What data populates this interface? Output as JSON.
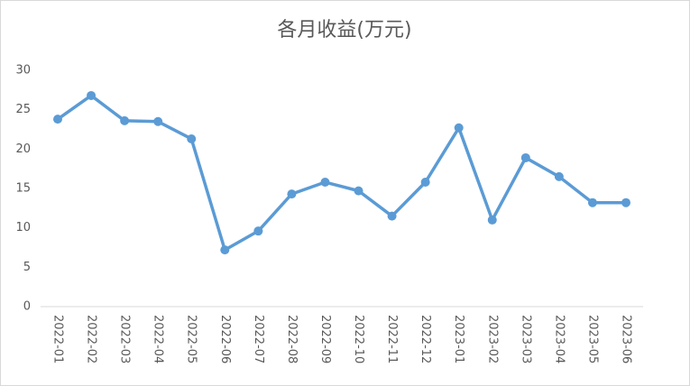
{
  "chart_data": {
    "type": "line",
    "title": "各月收益(万元)",
    "categories": [
      "2022-01",
      "2022-02",
      "2022-03",
      "2022-04",
      "2022-05",
      "2022-06",
      "2022-07",
      "2022-08",
      "2022-09",
      "2022-10",
      "2022-11",
      "2022-12",
      "2023-01",
      "2023-02",
      "2023-03",
      "2023-04",
      "2023-05",
      "2023-06"
    ],
    "values": [
      23.8,
      26.8,
      23.6,
      23.5,
      21.3,
      7.2,
      9.6,
      14.3,
      15.8,
      14.7,
      11.5,
      15.8,
      22.7,
      11.0,
      18.9,
      16.5,
      13.2,
      13.2
    ],
    "color": "#5b9bd5",
    "ylim": [
      0,
      30
    ],
    "yticks": [
      0,
      5,
      10,
      15,
      20,
      25,
      30
    ],
    "grid": false
  }
}
